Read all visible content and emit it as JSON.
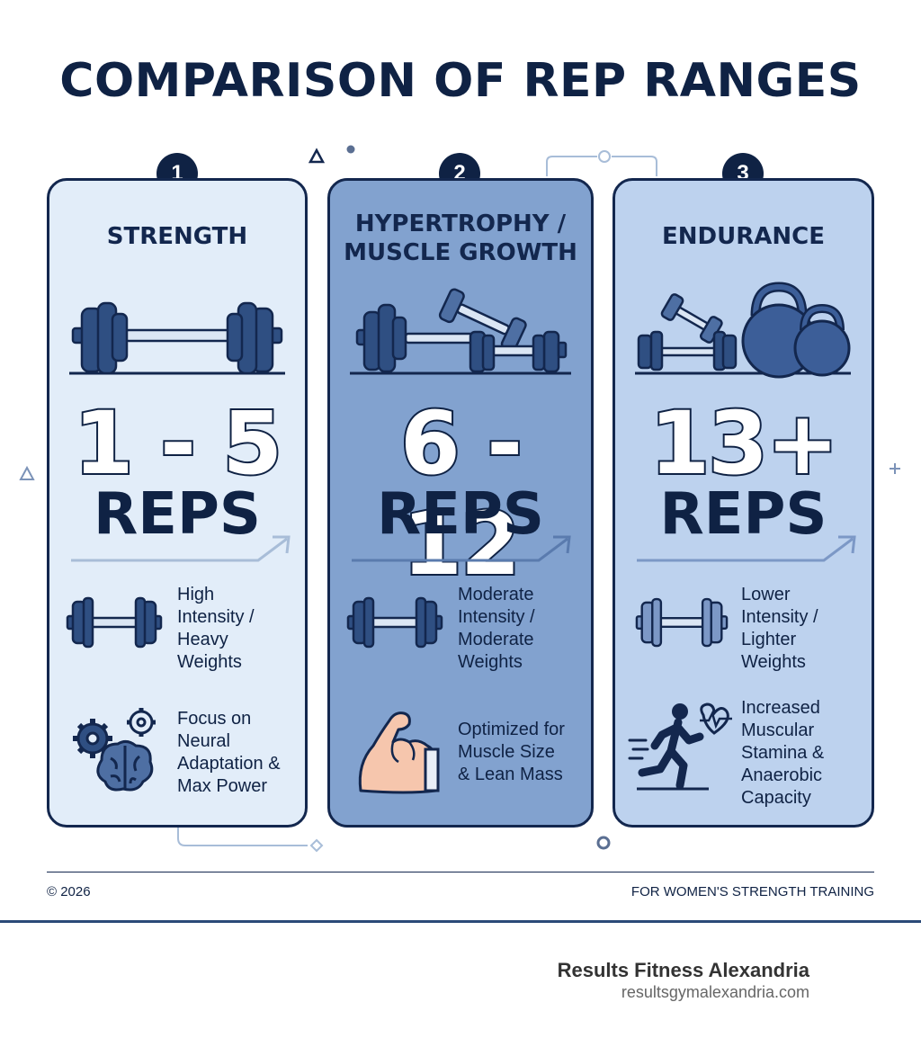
{
  "header": {
    "title": "COMPARISON OF REP RANGES"
  },
  "colors": {
    "navy": "#0f2244",
    "card1": "#e2edf9",
    "card2": "#82a2cf",
    "card3": "#bdd2ee",
    "accent": "#2b4a78"
  },
  "cards": [
    {
      "number": "1",
      "title_line1": "STRENGTH",
      "title_line2": "",
      "range": "1 - 5",
      "unit": "REPS",
      "hero_icon": "barbell-icon",
      "features": [
        {
          "icon": "dumbbell-icon",
          "text": "High\nIntensity /\nHeavy\nWeights"
        },
        {
          "icon": "brain-gears-icon",
          "text": "Focus on\nNeural\nAdaptation &\nMax Power"
        }
      ]
    },
    {
      "number": "2",
      "title_line1": "HYPERTROPHY /",
      "title_line2": "MUSCLE GROWTH",
      "range": "6 - 12",
      "unit": "REPS",
      "hero_icon": "barbell-dumbbells-icon",
      "features": [
        {
          "icon": "dumbbell-icon",
          "text": "Moderate\nIntensity /\nModerate\nWeights"
        },
        {
          "icon": "flexed-arm-icon",
          "text": "Optimized for\nMuscle Size\n& Lean Mass"
        }
      ]
    },
    {
      "number": "3",
      "title_line1": "ENDURANCE",
      "title_line2": "",
      "range": "13+",
      "unit": "REPS",
      "hero_icon": "dumbbells-kettlebells-icon",
      "features": [
        {
          "icon": "dumbbell-icon",
          "text": "Lower\nIntensity /\nLighter\nWeights"
        },
        {
          "icon": "runner-heart-icon",
          "text": "Increased\nMuscular\nStamina &\nAnaerobic\nCapacity"
        }
      ]
    }
  ],
  "footer": {
    "copyright": "© 2026",
    "tagline": "FOR WOMEN'S STRENGTH TRAINING"
  },
  "brand": {
    "name": "Results Fitness Alexandria",
    "url": "resultsgymalexandria.com"
  }
}
